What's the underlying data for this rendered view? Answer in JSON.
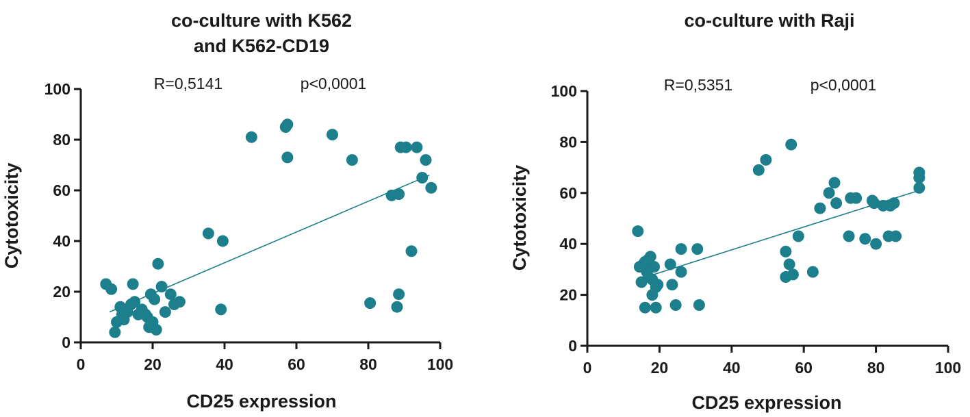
{
  "chart_data": [
    {
      "type": "scatter",
      "title_lines": [
        "co-culture with K562",
        "and K562-CD19"
      ],
      "stats": {
        "r": "R=0,5141",
        "p": "p<0,0001"
      },
      "xlabel": "CD25 expression",
      "ylabel": "Cytotoxicity",
      "xlim": [
        0,
        100
      ],
      "ylim": [
        0,
        100
      ],
      "xticks": [
        0,
        20,
        40,
        60,
        80,
        100
      ],
      "yticks": [
        0,
        20,
        40,
        60,
        80,
        100
      ],
      "color": "#1d7f8c",
      "trendline": {
        "x": [
          8,
          97
        ],
        "y": [
          12,
          66
        ]
      },
      "points": [
        {
          "x": 7,
          "y": 23
        },
        {
          "x": 8.5,
          "y": 21
        },
        {
          "x": 9.5,
          "y": 4
        },
        {
          "x": 10,
          "y": 8
        },
        {
          "x": 11,
          "y": 14
        },
        {
          "x": 11.5,
          "y": 11
        },
        {
          "x": 12,
          "y": 9
        },
        {
          "x": 12.5,
          "y": 13
        },
        {
          "x": 13,
          "y": 12
        },
        {
          "x": 14,
          "y": 15
        },
        {
          "x": 14.5,
          "y": 23
        },
        {
          "x": 15,
          "y": 16
        },
        {
          "x": 16,
          "y": 11
        },
        {
          "x": 17,
          "y": 13
        },
        {
          "x": 18,
          "y": 11
        },
        {
          "x": 18.5,
          "y": 10
        },
        {
          "x": 19,
          "y": 6
        },
        {
          "x": 19.5,
          "y": 19
        },
        {
          "x": 20,
          "y": 8
        },
        {
          "x": 20.5,
          "y": 17
        },
        {
          "x": 21,
          "y": 5
        },
        {
          "x": 21.5,
          "y": 31
        },
        {
          "x": 22.5,
          "y": 22
        },
        {
          "x": 23.5,
          "y": 12
        },
        {
          "x": 25,
          "y": 19
        },
        {
          "x": 26,
          "y": 15
        },
        {
          "x": 27.5,
          "y": 16
        },
        {
          "x": 35.5,
          "y": 43
        },
        {
          "x": 39,
          "y": 13
        },
        {
          "x": 39.5,
          "y": 40
        },
        {
          "x": 47.5,
          "y": 81
        },
        {
          "x": 57,
          "y": 85
        },
        {
          "x": 57.5,
          "y": 86
        },
        {
          "x": 57.5,
          "y": 73
        },
        {
          "x": 70,
          "y": 82
        },
        {
          "x": 75.5,
          "y": 72
        },
        {
          "x": 80.5,
          "y": 15.5
        },
        {
          "x": 86.5,
          "y": 58
        },
        {
          "x": 88,
          "y": 14
        },
        {
          "x": 88.5,
          "y": 19
        },
        {
          "x": 88.5,
          "y": 58.5
        },
        {
          "x": 89,
          "y": 77
        },
        {
          "x": 90.5,
          "y": 77
        },
        {
          "x": 92,
          "y": 36
        },
        {
          "x": 93.5,
          "y": 77
        },
        {
          "x": 95,
          "y": 65
        },
        {
          "x": 96,
          "y": 72
        },
        {
          "x": 97.5,
          "y": 61
        }
      ]
    },
    {
      "type": "scatter",
      "title_lines": [
        "co-culture with Raji"
      ],
      "stats": {
        "r": "R=0,5351",
        "p": "p<0,0001"
      },
      "xlabel": "CD25 expression",
      "ylabel": "Cytotoxicity",
      "xlim": [
        0,
        100
      ],
      "ylim": [
        0,
        100
      ],
      "xticks": [
        0,
        20,
        40,
        60,
        80,
        100
      ],
      "yticks": [
        0,
        20,
        40,
        60,
        80,
        100
      ],
      "color": "#1d7f8c",
      "trendline": {
        "x": [
          14,
          92
        ],
        "y": [
          26,
          61
        ]
      },
      "points": [
        {
          "x": 14,
          "y": 45
        },
        {
          "x": 14.5,
          "y": 31
        },
        {
          "x": 15,
          "y": 25
        },
        {
          "x": 15.5,
          "y": 32
        },
        {
          "x": 16,
          "y": 33
        },
        {
          "x": 16,
          "y": 15
        },
        {
          "x": 16.5,
          "y": 29
        },
        {
          "x": 17,
          "y": 34
        },
        {
          "x": 17,
          "y": 27
        },
        {
          "x": 17.5,
          "y": 35
        },
        {
          "x": 18,
          "y": 26
        },
        {
          "x": 18,
          "y": 20
        },
        {
          "x": 18.5,
          "y": 31
        },
        {
          "x": 19,
          "y": 23
        },
        {
          "x": 19,
          "y": 15
        },
        {
          "x": 19.5,
          "y": 24
        },
        {
          "x": 23,
          "y": 32
        },
        {
          "x": 23.5,
          "y": 24
        },
        {
          "x": 24.5,
          "y": 16
        },
        {
          "x": 26,
          "y": 29
        },
        {
          "x": 26,
          "y": 38
        },
        {
          "x": 30.5,
          "y": 38
        },
        {
          "x": 31,
          "y": 16
        },
        {
          "x": 47.5,
          "y": 69
        },
        {
          "x": 49.5,
          "y": 73
        },
        {
          "x": 55,
          "y": 37
        },
        {
          "x": 55,
          "y": 27
        },
        {
          "x": 56,
          "y": 32
        },
        {
          "x": 56.5,
          "y": 79
        },
        {
          "x": 57,
          "y": 28
        },
        {
          "x": 58.5,
          "y": 43
        },
        {
          "x": 62.5,
          "y": 29
        },
        {
          "x": 64.5,
          "y": 54
        },
        {
          "x": 67,
          "y": 60
        },
        {
          "x": 68.5,
          "y": 64
        },
        {
          "x": 69,
          "y": 56
        },
        {
          "x": 72.5,
          "y": 43
        },
        {
          "x": 73,
          "y": 58
        },
        {
          "x": 74.5,
          "y": 58
        },
        {
          "x": 77,
          "y": 42
        },
        {
          "x": 79,
          "y": 57
        },
        {
          "x": 79.5,
          "y": 56
        },
        {
          "x": 80,
          "y": 40
        },
        {
          "x": 82,
          "y": 55
        },
        {
          "x": 83.5,
          "y": 43
        },
        {
          "x": 84,
          "y": 55
        },
        {
          "x": 85,
          "y": 56
        },
        {
          "x": 85.5,
          "y": 43
        },
        {
          "x": 92,
          "y": 68
        },
        {
          "x": 92,
          "y": 66
        },
        {
          "x": 92,
          "y": 62
        }
      ]
    }
  ]
}
